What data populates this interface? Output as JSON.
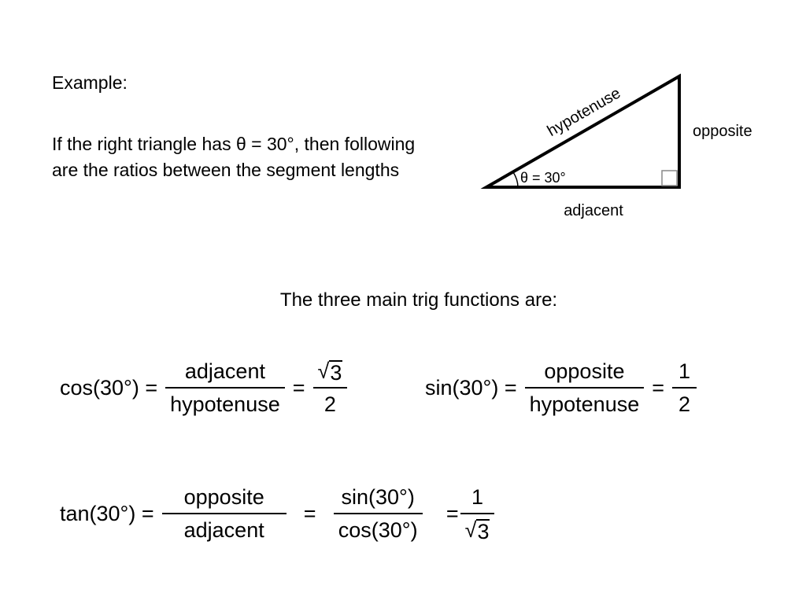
{
  "heading": {
    "example": "Example:"
  },
  "intro": "If the right triangle has θ = 30°, then following are the ratios between the segment lengths",
  "triangle": {
    "hypotenuse": "hypotenuse",
    "opposite": "opposite",
    "adjacent": "adjacent",
    "angle": "θ = 30°"
  },
  "functions_heading": "The three main trig functions are:",
  "cos": {
    "lhs": "cos(30°) =",
    "num": "adjacent",
    "den": "hypotenuse",
    "eq": "=",
    "rnum": "3",
    "rden": "2"
  },
  "sin": {
    "lhs": "sin(30°) =",
    "num": "opposite",
    "den": "hypotenuse",
    "eq": "=",
    "rnum": "1",
    "rden": "2"
  },
  "tan": {
    "lhs": "tan(30°) =",
    "num": "opposite",
    "den": "adjacent",
    "eq1": "=",
    "num2": "sin(30°)",
    "den2": "cos(30°)",
    "eq2": "=",
    "rnum": "1",
    "rden": "3"
  }
}
